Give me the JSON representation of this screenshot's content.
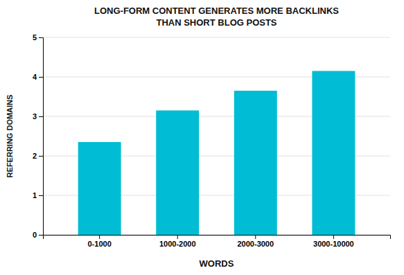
{
  "chart_data": {
    "type": "bar",
    "title": [
      "LONG-FORM CONTENT GENERATES MORE BACKLINKS",
      "THAN SHORT BLOG POSTS"
    ],
    "x_label": "WORDS",
    "y_label": "REFERRING DOMAINS",
    "categories": [
      "0-1000",
      "1000-2000",
      "2000-3000",
      "3000-10000"
    ],
    "values": [
      2.35,
      3.15,
      3.65,
      4.15
    ],
    "color": "#00bcd4",
    "ylim": [
      0,
      5
    ],
    "yticks": [
      0,
      1,
      2,
      3,
      4,
      5
    ],
    "grid": true
  }
}
